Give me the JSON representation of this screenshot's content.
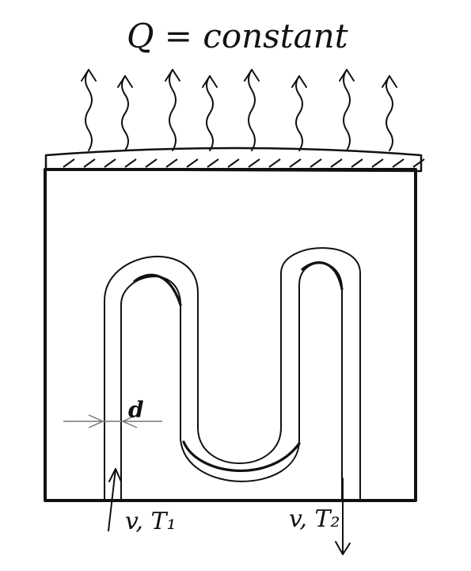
{
  "title": "Q = constant",
  "labels": {
    "inlet": "v, T₁",
    "outlet": "v, T₂",
    "thickness": "d"
  },
  "colors": {
    "ink": "#111111",
    "dimension": "#777777",
    "background": "#ffffff"
  },
  "heat_arrow_count": 8
}
